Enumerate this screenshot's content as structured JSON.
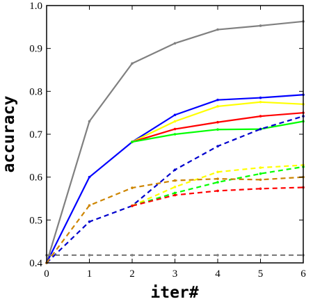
{
  "chart_data": {
    "type": "line",
    "xlabel": "iter#",
    "ylabel": "accuracy",
    "xlim": [
      0,
      6
    ],
    "ylim": [
      0.4,
      1.0
    ],
    "x_ticks": [
      "0",
      "1",
      "2",
      "3",
      "4",
      "5",
      "6"
    ],
    "y_ticks": [
      "0.4",
      "0.5",
      "0.6",
      "0.7",
      "0.8",
      "0.9",
      "1.0"
    ],
    "grid": false,
    "legend": "none",
    "x": [
      0,
      1,
      2,
      3,
      4,
      5,
      6
    ],
    "series": [
      {
        "color": "#808080",
        "style": "solid",
        "values": [
          0.4,
          0.73,
          0.865,
          0.912,
          0.944,
          0.953,
          0.963
        ]
      },
      {
        "color": "#0000ff",
        "style": "solid",
        "values": [
          0.4,
          0.6,
          0.682,
          0.745,
          0.78,
          0.785,
          0.792
        ]
      },
      {
        "color": "#ffff00",
        "style": "solid",
        "values": [
          null,
          null,
          0.682,
          0.73,
          0.765,
          0.775,
          0.77
        ]
      },
      {
        "color": "#ff0000",
        "style": "solid",
        "values": [
          null,
          null,
          0.682,
          0.712,
          0.728,
          0.742,
          0.75
        ]
      },
      {
        "color": "#00ff00",
        "style": "solid",
        "values": [
          null,
          null,
          0.682,
          0.7,
          0.711,
          0.712,
          0.73
        ]
      },
      {
        "color": "#0000cd",
        "style": "dashed",
        "values": [
          0.4,
          0.496,
          0.533,
          0.617,
          0.672,
          0.712,
          0.742
        ]
      },
      {
        "color": "#ffff00",
        "style": "dashed",
        "values": [
          null,
          null,
          0.533,
          0.577,
          0.612,
          0.622,
          0.628
        ]
      },
      {
        "color": "#00ff00",
        "style": "dashed",
        "values": [
          null,
          null,
          0.533,
          0.563,
          0.588,
          0.608,
          0.624
        ]
      },
      {
        "color": "#cd8500",
        "style": "dashed",
        "values": [
          0.4,
          0.534,
          0.575,
          0.592,
          0.596,
          0.594,
          0.6
        ]
      },
      {
        "color": "#ff0000",
        "style": "dashed",
        "values": [
          null,
          null,
          0.533,
          0.558,
          0.568,
          0.573,
          0.576
        ]
      },
      {
        "color": "#808080",
        "style": "dashed",
        "values": [
          0.418,
          0.418,
          0.418,
          0.418,
          0.418,
          0.418,
          0.418
        ]
      }
    ]
  }
}
